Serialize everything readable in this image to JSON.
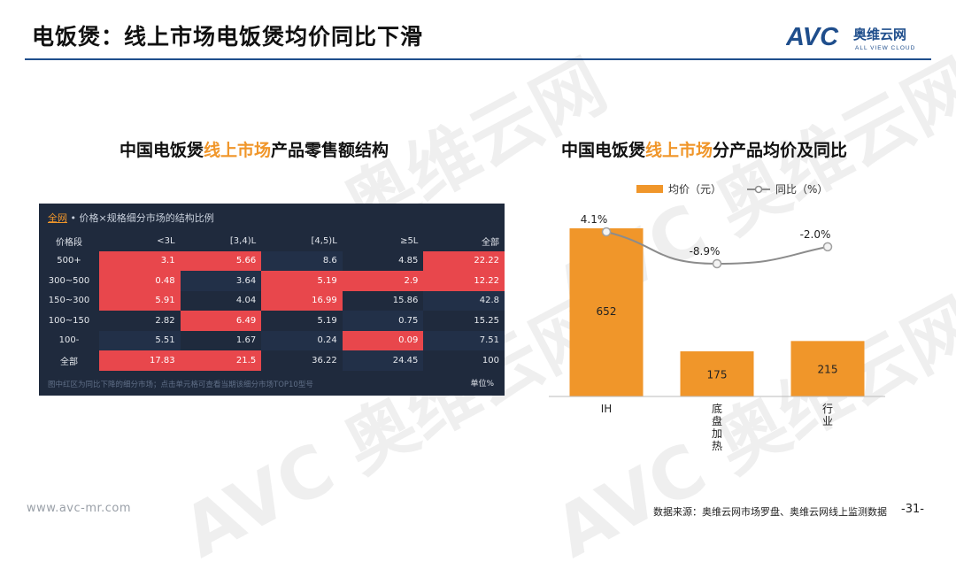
{
  "header": {
    "title": "电饭煲：线上市场电饭煲均价同比下滑",
    "logo_mark": "AVC",
    "logo_cn": "奥维云网",
    "logo_en": "ALL VIEW CLOUD"
  },
  "watermark": {
    "text": "AVC 奥维云网",
    "sub": "ALL VIEW CLOUD"
  },
  "left_chart": {
    "title_pre": "中国电饭煲",
    "title_highlight": "线上市场",
    "title_post": "产品零售额结构",
    "panel": {
      "scope": "全网",
      "subtitle": " • 价格×规格细分市场的结构比例",
      "columns": [
        "价格段",
        "<3L",
        "[3,4)L",
        "[4,5)L",
        "≥5L",
        "全部"
      ],
      "rows": [
        {
          "label": "500+",
          "cells": [
            "3.1",
            "5.66",
            "8.6",
            "4.85",
            "22.22"
          ]
        },
        {
          "label": "300~500",
          "cells": [
            "0.48",
            "3.64",
            "5.19",
            "2.9",
            "12.22"
          ]
        },
        {
          "label": "150~300",
          "cells": [
            "5.91",
            "4.04",
            "16.99",
            "15.86",
            "42.8"
          ]
        },
        {
          "label": "100~150",
          "cells": [
            "2.82",
            "6.49",
            "5.19",
            "0.75",
            "15.25"
          ]
        },
        {
          "label": "100-",
          "cells": [
            "5.51",
            "1.67",
            "0.24",
            "0.09",
            "7.51"
          ]
        },
        {
          "label": "全部",
          "cells": [
            "17.83",
            "21.5",
            "36.22",
            "24.45",
            "100"
          ]
        }
      ],
      "highlight": [
        [
          true,
          true,
          false,
          false,
          true
        ],
        [
          true,
          false,
          true,
          true,
          true
        ],
        [
          true,
          false,
          true,
          false,
          false
        ],
        [
          false,
          true,
          false,
          false,
          false
        ],
        [
          false,
          false,
          false,
          true,
          false
        ],
        [
          true,
          true,
          false,
          false,
          false
        ]
      ],
      "note": "图中红区为同比下降的细分市场；点击单元格可查看当期该细分市场TOP10型号",
      "unit": "单位%"
    }
  },
  "right_chart": {
    "title_pre": "中国电饭煲",
    "title_highlight": "线上市场",
    "title_post": "分产品均价及同比"
  },
  "chart_data": {
    "type": "bar",
    "categories": [
      "IH",
      "底盘加热",
      "行业"
    ],
    "category_labels_vertical": [
      "IH",
      "底\n盘\n加\n热",
      "行\n业"
    ],
    "series": [
      {
        "name": "均价（元）",
        "type": "bar",
        "axis": "left",
        "values": [
          652,
          175,
          215
        ],
        "color": "#f0962a"
      },
      {
        "name": "同比（%）",
        "type": "line",
        "axis": "right",
        "values": [
          4.1,
          -8.9,
          -2.0
        ],
        "labels": [
          "4.1%",
          "-8.9%",
          "-2.0%"
        ],
        "color": "#8c8c8c"
      }
    ],
    "legend": "top-center",
    "grid": false
  },
  "footer": {
    "url": "www.avc-mr.com",
    "source": "数据来源：奥维云网市场罗盘、奥维云网线上监测数据",
    "page": "-31-"
  }
}
